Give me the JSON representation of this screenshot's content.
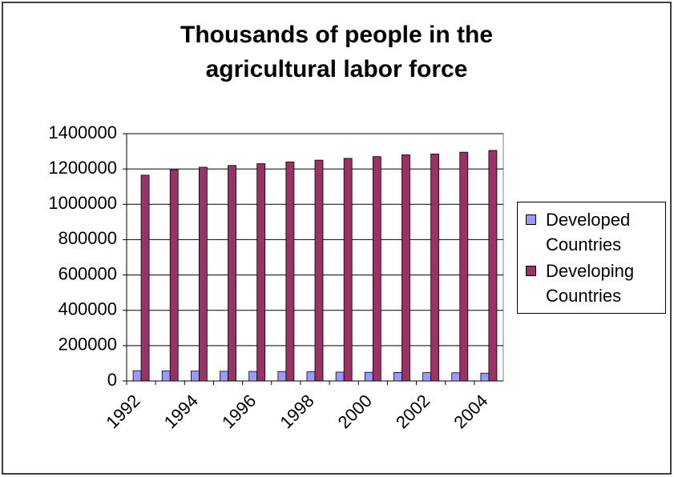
{
  "chart_data": {
    "type": "bar",
    "title": "Thousands of people in the agricultural labor force",
    "categories": [
      "1992",
      null,
      "1994",
      null,
      "1996",
      null,
      "1998",
      null,
      "2000",
      null,
      "2002",
      null,
      "2004"
    ],
    "series": [
      {
        "name": "Developed Countries",
        "color": "#9999ff",
        "values": [
          58000,
          57000,
          56000,
          55000,
          54000,
          53000,
          52000,
          50000,
          49000,
          48000,
          47000,
          46000,
          44000
        ]
      },
      {
        "name": "Developing Countries",
        "color": "#993366",
        "values": [
          1165000,
          1195000,
          1210000,
          1220000,
          1230000,
          1240000,
          1250000,
          1260000,
          1270000,
          1280000,
          1285000,
          1295000,
          1305000
        ]
      }
    ],
    "ylim": [
      0,
      1400000
    ],
    "yticks": [
      0,
      200000,
      400000,
      600000,
      800000,
      1000000,
      1200000,
      1400000
    ],
    "grid": true,
    "legend": "right"
  }
}
